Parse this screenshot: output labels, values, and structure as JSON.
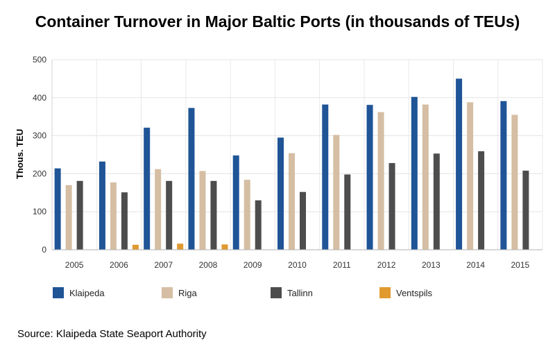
{
  "chart_data": {
    "type": "bar",
    "title": "Container Turnover in Major Baltic Ports (in thousands of TEUs)",
    "ylabel": "Thous. TEU",
    "xlabel": "",
    "ylim": [
      0,
      500
    ],
    "yticks": [
      0,
      100,
      200,
      300,
      400,
      500
    ],
    "grid": true,
    "legend_position": "bottom",
    "categories": [
      "2005",
      "2006",
      "2007",
      "2008",
      "2009",
      "2010",
      "2011",
      "2012",
      "2013",
      "2014",
      "2015"
    ],
    "series": [
      {
        "name": "Klaipeda",
        "color": "#1f5497",
        "values": [
          214,
          232,
          321,
          373,
          248,
          295,
          382,
          381,
          402,
          450,
          391
        ]
      },
      {
        "name": "Riga",
        "color": "#d5bea3",
        "values": [
          170,
          177,
          212,
          207,
          184,
          254,
          302,
          362,
          382,
          388,
          355
        ]
      },
      {
        "name": "Tallinn",
        "color": "#4d4d4d",
        "values": [
          181,
          151,
          181,
          181,
          130,
          152,
          198,
          228,
          253,
          259,
          208
        ]
      },
      {
        "name": "Ventspils",
        "color": "#e09a30",
        "values": [
          0,
          13,
          16,
          14,
          0,
          0,
          0,
          0,
          0,
          0,
          0
        ]
      }
    ],
    "source": "Source: Klaipeda State Seaport Authority"
  }
}
